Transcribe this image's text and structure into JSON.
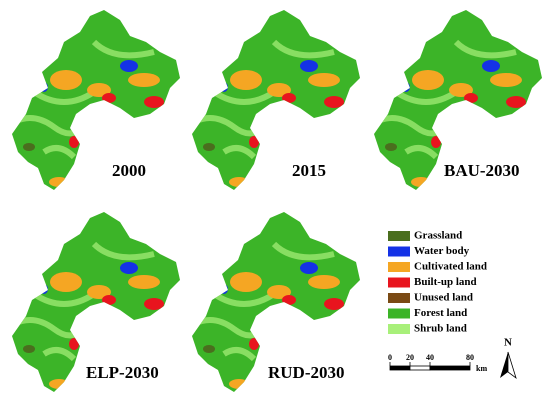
{
  "panels": [
    {
      "label": "2000"
    },
    {
      "label": "2015"
    },
    {
      "label": "BAU-2030"
    },
    {
      "label": "ELP-2030"
    },
    {
      "label": "RUD-2030"
    }
  ],
  "legend": [
    {
      "name": "Grassland",
      "color": "#4a6e1e"
    },
    {
      "name": "Water body",
      "color": "#1432e6"
    },
    {
      "name": "Cultivated land",
      "color": "#f5a623"
    },
    {
      "name": "Built-up land",
      "color": "#e8141e"
    },
    {
      "name": "Unused land",
      "color": "#7a4a14"
    },
    {
      "name": "Forest land",
      "color": "#3cb428"
    },
    {
      "name": "Shrub land",
      "color": "#a8f07a"
    }
  ],
  "scale_bar": {
    "ticks": [
      0,
      20,
      40,
      80
    ],
    "unit": "km"
  },
  "north_arrow": "N"
}
